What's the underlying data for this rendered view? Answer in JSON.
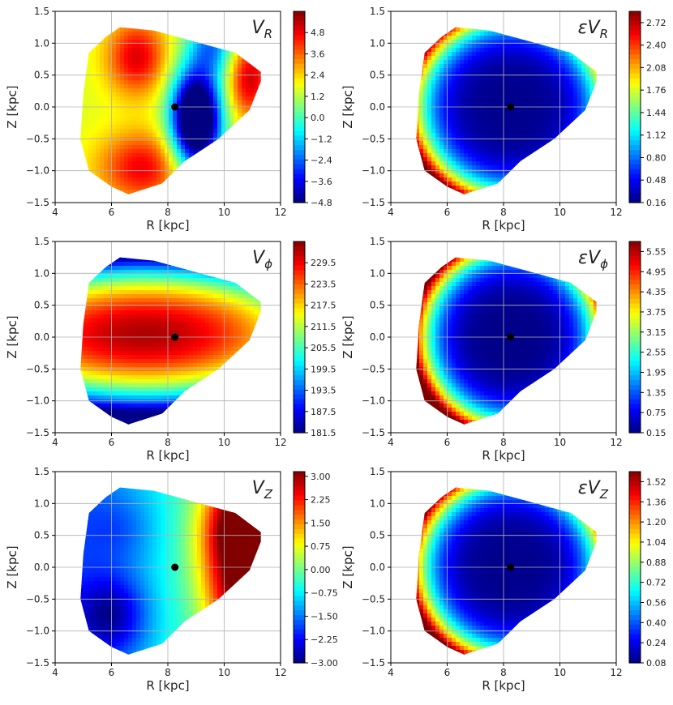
{
  "chart_data": [
    {
      "id": "vr",
      "type": "heatmap",
      "title": "V",
      "title_sub": "R",
      "title_prefix": "",
      "xlabel": "R [kpc]",
      "ylabel": "Z [kpc]",
      "xlim": [
        4,
        12
      ],
      "ylim": [
        -1.5,
        1.5
      ],
      "xticks": [
        "4",
        "6",
        "8",
        "10",
        "12"
      ],
      "yticks": [
        "1.5",
        "1.0",
        "0.5",
        "0.0",
        "−0.5",
        "−1.0",
        "−1.5"
      ],
      "grid": true,
      "colormap": "jet",
      "colorbar_range": [
        -4.8,
        6.0
      ],
      "colorbar_ticks": [
        "4.8",
        "3.6",
        "2.4",
        "1.2",
        "0.0",
        "−1.2",
        "−2.4",
        "−3.6",
        "−4.8"
      ],
      "sun_marker": {
        "R": 8.25,
        "Z": 0.0
      },
      "hull": [
        [
          6.3,
          1.25
        ],
        [
          7.5,
          1.2
        ],
        [
          10.4,
          0.85
        ],
        [
          11.3,
          0.55
        ],
        [
          11.3,
          0.4
        ],
        [
          10.9,
          -0.05
        ],
        [
          9.8,
          -0.5
        ],
        [
          8.6,
          -0.85
        ],
        [
          7.8,
          -1.2
        ],
        [
          6.6,
          -1.37
        ],
        [
          6.0,
          -1.25
        ],
        [
          5.2,
          -1.0
        ],
        [
          4.9,
          -0.5
        ],
        [
          5.0,
          0.2
        ],
        [
          5.2,
          0.85
        ],
        [
          5.8,
          1.1
        ]
      ],
      "features": [
        {
          "R": 6.9,
          "Z": 0.78,
          "value": 5.0,
          "sR": 0.75,
          "sZ": 0.42
        },
        {
          "R": 7.1,
          "Z": -0.95,
          "value": 4.8,
          "sR": 1.1,
          "sZ": 0.4
        },
        {
          "R": 10.9,
          "Z": 0.45,
          "value": 5.2,
          "sR": 0.55,
          "sZ": 0.45
        },
        {
          "R": 9.0,
          "Z": -0.2,
          "value": -8.0,
          "sR": 0.62,
          "sZ": 0.55
        },
        {
          "R": 9.6,
          "Z": 1.0,
          "value": -1.8,
          "sR": 0.6,
          "sZ": 0.35
        }
      ],
      "base_value": 1.6
    },
    {
      "id": "evr",
      "type": "heatmap",
      "title": "V",
      "title_sub": "R",
      "title_prefix": "ε",
      "xlabel": "R [kpc]",
      "ylabel": "Z [kpc]",
      "xlim": [
        4,
        12
      ],
      "ylim": [
        -1.5,
        1.5
      ],
      "xticks": [
        "4",
        "6",
        "8",
        "10",
        "12"
      ],
      "yticks": [
        "1.5",
        "1.0",
        "0.5",
        "0.0",
        "−0.5",
        "−1.0",
        "−1.5"
      ],
      "grid": true,
      "colormap": "jet",
      "colorbar_range": [
        0.16,
        2.88
      ],
      "colorbar_ticks": [
        "2.72",
        "2.40",
        "2.08",
        "1.76",
        "1.44",
        "1.12",
        "0.80",
        "0.48",
        "0.16"
      ],
      "sun_marker": {
        "R": 8.25,
        "Z": 0.0
      },
      "hull": [
        [
          6.3,
          1.25
        ],
        [
          7.5,
          1.2
        ],
        [
          10.4,
          0.85
        ],
        [
          11.3,
          0.55
        ],
        [
          11.3,
          0.4
        ],
        [
          10.9,
          -0.05
        ],
        [
          9.8,
          -0.5
        ],
        [
          8.6,
          -0.85
        ],
        [
          7.8,
          -1.2
        ],
        [
          6.6,
          -1.37
        ],
        [
          6.0,
          -1.25
        ],
        [
          5.2,
          -1.0
        ],
        [
          4.9,
          -0.5
        ],
        [
          5.0,
          0.2
        ],
        [
          5.2,
          0.85
        ],
        [
          5.8,
          1.1
        ]
      ],
      "bowl": {
        "R": 8.25,
        "Z": 0.0,
        "min": 0.2,
        "max": 2.9,
        "rR": 3.4,
        "rZ": 1.45
      },
      "base_value": 0.2
    },
    {
      "id": "vphi",
      "type": "heatmap",
      "title": "V",
      "title_sub": "ϕ",
      "title_prefix": "",
      "xlabel": "R [kpc]",
      "ylabel": "Z [kpc]",
      "xlim": [
        4,
        12
      ],
      "ylim": [
        -1.5,
        1.5
      ],
      "xticks": [
        "4",
        "6",
        "8",
        "10",
        "12"
      ],
      "yticks": [
        "1.5",
        "1.0",
        "0.5",
        "0.0",
        "−0.5",
        "−1.0",
        "−1.5"
      ],
      "grid": true,
      "colormap": "jet",
      "colorbar_range": [
        181.5,
        235.5
      ],
      "colorbar_ticks": [
        "229.5",
        "223.5",
        "217.5",
        "211.5",
        "205.5",
        "199.5",
        "193.5",
        "187.5",
        "181.5"
      ],
      "sun_marker": {
        "R": 8.25,
        "Z": 0.0
      },
      "hull": [
        [
          6.3,
          1.25
        ],
        [
          7.5,
          1.2
        ],
        [
          10.4,
          0.85
        ],
        [
          11.3,
          0.55
        ],
        [
          11.3,
          0.4
        ],
        [
          10.9,
          -0.05
        ],
        [
          9.8,
          -0.5
        ],
        [
          8.6,
          -0.85
        ],
        [
          7.8,
          -1.2
        ],
        [
          6.6,
          -1.37
        ],
        [
          6.0,
          -1.25
        ],
        [
          5.2,
          -1.0
        ],
        [
          4.9,
          -0.5
        ],
        [
          5.0,
          0.2
        ],
        [
          5.2,
          0.85
        ],
        [
          5.8,
          1.1
        ]
      ],
      "disk": {
        "Z0": 0.05,
        "peak": 233.0,
        "edge": 182.0,
        "scaleZ": 1.3,
        "peakR": 7.2
      },
      "base_value": 215.0
    },
    {
      "id": "evphi",
      "type": "heatmap",
      "title": "V",
      "title_sub": "ϕ",
      "title_prefix": "ε",
      "xlabel": "R [kpc]",
      "ylabel": "Z [kpc]",
      "xlim": [
        4,
        12
      ],
      "ylim": [
        -1.5,
        1.5
      ],
      "xticks": [
        "4",
        "6",
        "8",
        "10",
        "12"
      ],
      "yticks": [
        "1.5",
        "1.0",
        "0.5",
        "0.0",
        "−0.5",
        "−1.0",
        "−1.5"
      ],
      "grid": true,
      "colormap": "jet",
      "colorbar_range": [
        0.15,
        5.85
      ],
      "colorbar_ticks": [
        "5.55",
        "4.95",
        "4.35",
        "3.75",
        "3.15",
        "2.55",
        "1.95",
        "1.35",
        "0.75",
        "0.15"
      ],
      "sun_marker": {
        "R": 8.25,
        "Z": 0.0
      },
      "hull": [
        [
          6.3,
          1.25
        ],
        [
          7.5,
          1.2
        ],
        [
          10.4,
          0.85
        ],
        [
          11.3,
          0.55
        ],
        [
          11.3,
          0.4
        ],
        [
          10.9,
          -0.05
        ],
        [
          9.8,
          -0.5
        ],
        [
          8.6,
          -0.85
        ],
        [
          7.8,
          -1.2
        ],
        [
          6.6,
          -1.37
        ],
        [
          6.0,
          -1.25
        ],
        [
          5.2,
          -1.0
        ],
        [
          4.9,
          -0.5
        ],
        [
          5.0,
          0.2
        ],
        [
          5.2,
          0.85
        ],
        [
          5.8,
          1.1
        ]
      ],
      "bowl": {
        "R": 8.25,
        "Z": 0.0,
        "min": 0.2,
        "max": 6.0,
        "rR": 3.2,
        "rZ": 1.45
      },
      "base_value": 0.2
    },
    {
      "id": "vz",
      "type": "heatmap",
      "title": "V",
      "title_sub": "Z",
      "title_prefix": "",
      "xlabel": "R [kpc]",
      "ylabel": "Z [kpc]",
      "xlim": [
        4,
        12
      ],
      "ylim": [
        -1.5,
        1.5
      ],
      "xticks": [
        "4",
        "6",
        "8",
        "10",
        "12"
      ],
      "yticks": [
        "1.5",
        "1.0",
        "0.5",
        "0.0",
        "−0.5",
        "−1.0",
        "−1.5"
      ],
      "grid": true,
      "colormap": "jet",
      "colorbar_range": [
        -3.0,
        3.15
      ],
      "colorbar_ticks": [
        "3.00",
        "2.25",
        "1.50",
        "0.75",
        "0.00",
        "−0.75",
        "−1.50",
        "−2.25",
        "−3.00"
      ],
      "sun_marker": {
        "R": 8.25,
        "Z": 0.0
      },
      "hull": [
        [
          6.3,
          1.25
        ],
        [
          7.5,
          1.2
        ],
        [
          10.4,
          0.85
        ],
        [
          11.3,
          0.55
        ],
        [
          11.3,
          0.4
        ],
        [
          10.9,
          -0.05
        ],
        [
          9.8,
          -0.5
        ],
        [
          8.6,
          -0.85
        ],
        [
          7.8,
          -1.2
        ],
        [
          6.6,
          -1.37
        ],
        [
          6.0,
          -1.25
        ],
        [
          5.2,
          -1.0
        ],
        [
          4.9,
          -0.5
        ],
        [
          5.0,
          0.2
        ],
        [
          5.2,
          0.85
        ],
        [
          5.8,
          1.1
        ]
      ],
      "features": [
        {
          "R": 6.0,
          "Z": -0.75,
          "value": -2.2,
          "sR": 0.9,
          "sZ": 0.45
        },
        {
          "R": 6.3,
          "Z": 0.6,
          "value": -1.2,
          "sR": 0.9,
          "sZ": 0.4
        },
        {
          "R": 11.0,
          "Z": 0.7,
          "value": 3.5,
          "sR": 0.9,
          "sZ": 0.5
        },
        {
          "R": 10.5,
          "Z": -0.5,
          "value": 1.6,
          "sR": 0.7,
          "sZ": 0.6
        },
        {
          "R": 9.8,
          "Z": 0.3,
          "value": 0.6,
          "sR": 0.8,
          "sZ": 0.8
        }
      ],
      "base_value": -0.6,
      "gradient_R": 0.35
    },
    {
      "id": "evz",
      "type": "heatmap",
      "title": "V",
      "title_sub": "Z",
      "title_prefix": "ε",
      "xlabel": "R [kpc]",
      "ylabel": "Z [kpc]",
      "xlim": [
        4,
        12
      ],
      "ylim": [
        -1.5,
        1.5
      ],
      "xticks": [
        "4",
        "6",
        "8",
        "10",
        "12"
      ],
      "yticks": [
        "1.5",
        "1.0",
        "0.5",
        "0.0",
        "−0.5",
        "−1.0",
        "−1.5"
      ],
      "grid": true,
      "colormap": "jet",
      "colorbar_range": [
        0.08,
        1.6
      ],
      "colorbar_ticks": [
        "1.52",
        "1.36",
        "1.20",
        "1.04",
        "0.88",
        "0.72",
        "0.56",
        "0.40",
        "0.24",
        "0.08"
      ],
      "sun_marker": {
        "R": 8.25,
        "Z": 0.0
      },
      "hull": [
        [
          6.3,
          1.25
        ],
        [
          7.5,
          1.2
        ],
        [
          10.4,
          0.85
        ],
        [
          11.3,
          0.55
        ],
        [
          11.3,
          0.4
        ],
        [
          10.9,
          -0.05
        ],
        [
          9.8,
          -0.5
        ],
        [
          8.6,
          -0.85
        ],
        [
          7.8,
          -1.2
        ],
        [
          6.6,
          -1.37
        ],
        [
          6.0,
          -1.25
        ],
        [
          5.2,
          -1.0
        ],
        [
          4.9,
          -0.5
        ],
        [
          5.0,
          0.2
        ],
        [
          5.2,
          0.85
        ],
        [
          5.8,
          1.1
        ]
      ],
      "bowl": {
        "R": 8.25,
        "Z": 0.0,
        "min": 0.1,
        "max": 1.6,
        "rR": 3.3,
        "rZ": 1.45
      },
      "base_value": 0.1
    }
  ]
}
